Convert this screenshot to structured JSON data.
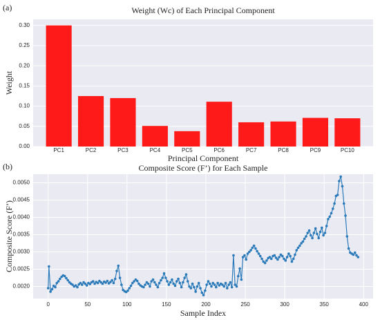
{
  "chart_data": [
    {
      "type": "bar",
      "panel_label": "(a)",
      "title": "Weight (Wc) of Each Principal Component",
      "xlabel": "Principal Component",
      "ylabel": "Weight",
      "categories": [
        "PC1",
        "PC2",
        "PC3",
        "PC4",
        "PC5",
        "PC6",
        "PC7",
        "PC8",
        "PC9",
        "PC10"
      ],
      "values": [
        0.3,
        0.125,
        0.12,
        0.051,
        0.038,
        0.111,
        0.06,
        0.062,
        0.071,
        0.07
      ],
      "color": "#ff1a1a",
      "ylim": [
        0,
        0.315
      ],
      "yticks": [
        {
          "value": 0,
          "label": "0.00"
        },
        0.05,
        {
          "value": 0.1,
          "label": "0.10"
        },
        0.15,
        {
          "value": 0.2,
          "label": "0.20"
        },
        0.25,
        {
          "value": 0.3,
          "label": "0.30"
        }
      ],
      "grid": true
    },
    {
      "type": "line",
      "panel_label": "(b)",
      "title": "Composite Score (F’) for Each Sample",
      "xlabel": "Sample Index",
      "ylabel": "Composite Score (F’)",
      "color": "#2a7ab9",
      "xlim": [
        -19,
        412
      ],
      "xticks": [
        0,
        50,
        100,
        150,
        200,
        250,
        300,
        350,
        400
      ],
      "ylim": [
        0.00165,
        0.00525
      ],
      "yticks": [
        {
          "value": 0.002,
          "label": "0.0020"
        },
        0.0025,
        {
          "value": 0.003,
          "label": "0.0030"
        },
        0.0035,
        {
          "value": 0.004,
          "label": "0.0040"
        },
        0.0045,
        {
          "value": 0.005,
          "label": "0.0050"
        }
      ],
      "grid": true,
      "x": [
        0,
        1,
        3,
        5,
        7,
        9,
        11,
        13,
        15,
        17,
        19,
        21,
        23,
        25,
        27,
        29,
        31,
        33,
        35,
        37,
        39,
        41,
        43,
        45,
        47,
        49,
        51,
        53,
        55,
        57,
        59,
        61,
        63,
        65,
        67,
        69,
        71,
        73,
        75,
        77,
        79,
        81,
        83,
        85,
        87,
        89,
        91,
        93,
        95,
        97,
        99,
        101,
        103,
        105,
        107,
        109,
        111,
        113,
        115,
        117,
        119,
        121,
        123,
        125,
        127,
        129,
        131,
        133,
        135,
        137,
        139,
        141,
        143,
        145,
        147,
        149,
        151,
        153,
        155,
        157,
        159,
        161,
        163,
        165,
        167,
        169,
        171,
        173,
        175,
        177,
        179,
        181,
        183,
        185,
        187,
        189,
        191,
        193,
        195,
        197,
        199,
        201,
        203,
        205,
        207,
        209,
        211,
        213,
        215,
        217,
        219,
        221,
        223,
        225,
        227,
        229,
        231,
        233,
        235,
        237,
        239,
        241,
        243,
        245,
        247,
        249,
        251,
        253,
        255,
        257,
        259,
        261,
        263,
        265,
        267,
        269,
        271,
        273,
        275,
        277,
        279,
        281,
        283,
        285,
        287,
        289,
        291,
        293,
        295,
        297,
        299,
        301,
        303,
        305,
        307,
        309,
        311,
        313,
        315,
        317,
        319,
        321,
        323,
        325,
        327,
        329,
        331,
        333,
        335,
        337,
        339,
        341,
        343,
        345,
        347,
        349,
        351,
        353,
        355,
        357,
        359,
        361,
        363,
        365,
        367,
        369,
        371,
        373,
        375,
        377,
        379,
        381,
        383,
        385,
        387,
        389,
        391,
        393
      ],
      "values": [
        0.00195,
        0.00258,
        0.00185,
        0.00192,
        0.00202,
        0.00198,
        0.0021,
        0.00215,
        0.00222,
        0.00228,
        0.00232,
        0.0023,
        0.00224,
        0.00218,
        0.00212,
        0.00208,
        0.00205,
        0.002,
        0.00203,
        0.00198,
        0.00206,
        0.0021,
        0.00205,
        0.00212,
        0.00208,
        0.00203,
        0.0021,
        0.00207,
        0.00212,
        0.00215,
        0.00208,
        0.00213,
        0.0021,
        0.00216,
        0.00212,
        0.00208,
        0.00214,
        0.00211,
        0.00216,
        0.00209,
        0.00213,
        0.00218,
        0.0021,
        0.00222,
        0.00245,
        0.0026,
        0.00225,
        0.00205,
        0.0019,
        0.00186,
        0.00184,
        0.00188,
        0.00195,
        0.00202,
        0.0021,
        0.00215,
        0.0022,
        0.00216,
        0.00208,
        0.00203,
        0.002,
        0.00198,
        0.00205,
        0.00212,
        0.00208,
        0.002,
        0.00215,
        0.0022,
        0.00212,
        0.00205,
        0.00198,
        0.0021,
        0.00218,
        0.00225,
        0.00238,
        0.00225,
        0.00215,
        0.00205,
        0.00212,
        0.0022,
        0.00208,
        0.00202,
        0.00215,
        0.00222,
        0.0021,
        0.00198,
        0.00212,
        0.00225,
        0.00235,
        0.00215,
        0.002,
        0.00195,
        0.00208,
        0.00198,
        0.00185,
        0.002,
        0.0021,
        0.00195,
        0.00182,
        0.00175,
        0.00188,
        0.00205,
        0.00215,
        0.00208,
        0.002,
        0.0021,
        0.00205,
        0.00198,
        0.0021,
        0.00203,
        0.00208,
        0.00205,
        0.002,
        0.0021,
        0.00195,
        0.00205,
        0.00212,
        0.00198,
        0.0029,
        0.00205,
        0.002,
        0.0023,
        0.00252,
        0.0022,
        0.00285,
        0.0029,
        0.00278,
        0.00295,
        0.003,
        0.00305,
        0.00312,
        0.00318,
        0.0031,
        0.00302,
        0.00295,
        0.00288,
        0.0028,
        0.00272,
        0.00268,
        0.00275,
        0.00282,
        0.00285,
        0.0028,
        0.00288,
        0.0029,
        0.00283,
        0.00278,
        0.00285,
        0.00292,
        0.00288,
        0.0028,
        0.00275,
        0.00285,
        0.00295,
        0.00288,
        0.00272,
        0.0028,
        0.00292,
        0.00305,
        0.00312,
        0.00318,
        0.00325,
        0.0033,
        0.00338,
        0.00345,
        0.00355,
        0.00362,
        0.00348,
        0.0034,
        0.00355,
        0.00368,
        0.00352,
        0.0034,
        0.00358,
        0.0037,
        0.00348,
        0.00355,
        0.00375,
        0.00395,
        0.00402,
        0.00412,
        0.00425,
        0.0044,
        0.00462,
        0.00465,
        0.00505,
        0.00518,
        0.0049,
        0.0044,
        0.00405,
        0.00345,
        0.0031,
        0.00298,
        0.00295,
        0.00292,
        0.00298,
        0.0029,
        0.00285
      ]
    }
  ]
}
